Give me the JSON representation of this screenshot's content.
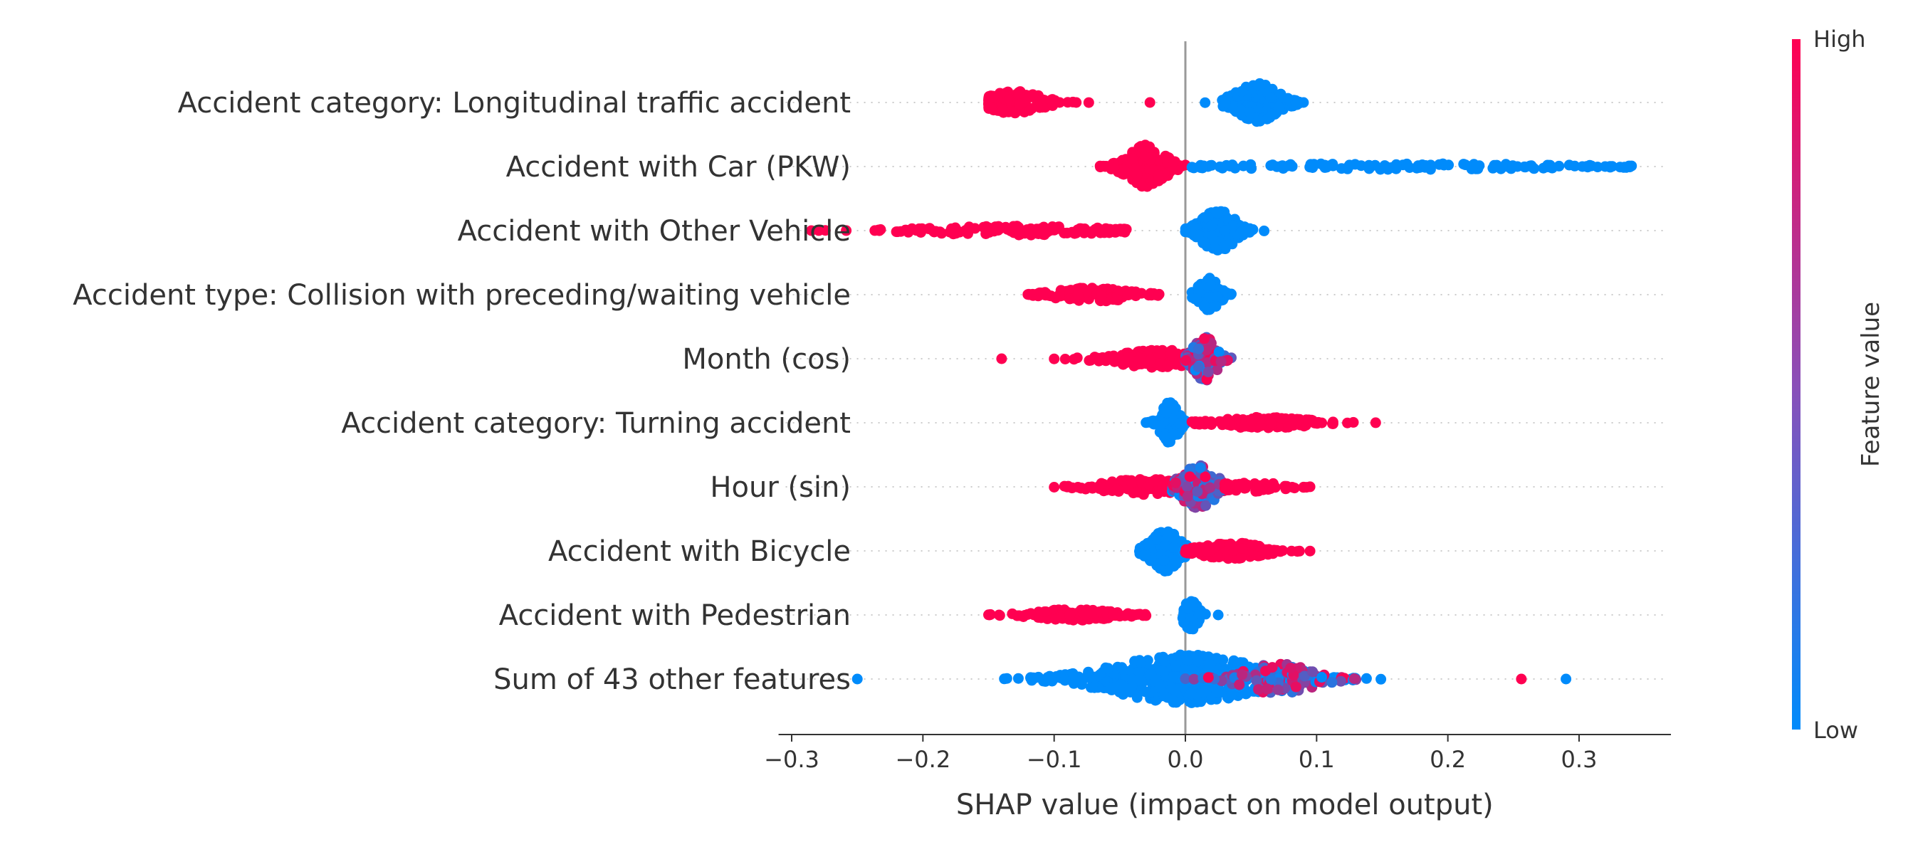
{
  "chart_data": {
    "type": "scatter",
    "subtype": "shap-beeswarm",
    "xlabel": "SHAP value (impact on model output)",
    "xlim": [
      -0.31,
      0.37
    ],
    "xticks": [
      -0.3,
      -0.2,
      -0.1,
      0.0,
      0.1,
      0.2,
      0.3
    ],
    "xtick_labels": [
      "−0.3",
      "−0.2",
      "−0.1",
      "0.0",
      "0.1",
      "0.2",
      "0.3"
    ],
    "zero_line": 0.0,
    "colors": {
      "high": "#ff0051",
      "low": "#008bfb",
      "zero_line": "#999999",
      "grid_dots": "#cccccc",
      "axis": "#333333"
    },
    "colorbar": {
      "title": "Feature value",
      "high_label": "High",
      "low_label": "Low"
    },
    "features": [
      {
        "name": "Accident category: Longitudinal traffic accident",
        "clusters": [
          {
            "lo": -0.15,
            "hi": -0.027,
            "center": -0.13,
            "spread": 0.018,
            "n": 160,
            "color": "high",
            "amp": 0.45
          },
          {
            "lo": 0.015,
            "hi": 0.09,
            "center": 0.055,
            "spread": 0.015,
            "n": 150,
            "color": "low",
            "amp": 0.75
          }
        ]
      },
      {
        "name": "Accident with Car (PKW)",
        "clusters": [
          {
            "lo": -0.065,
            "hi": 0.0,
            "center": -0.03,
            "spread": 0.013,
            "n": 220,
            "color": "high",
            "amp": 0.85
          },
          {
            "lo": 0.005,
            "hi": 0.34,
            "center": 0.16,
            "spread": 0.12,
            "n": 130,
            "color": "low",
            "amp": 0.12
          }
        ]
      },
      {
        "name": "Accident with Other Vehicle",
        "clusters": [
          {
            "lo": -0.285,
            "hi": -0.045,
            "center": -0.13,
            "spread": 0.06,
            "n": 150,
            "color": "high",
            "amp": 0.18
          },
          {
            "lo": 0.0,
            "hi": 0.06,
            "center": 0.025,
            "spread": 0.012,
            "n": 170,
            "color": "low",
            "amp": 0.8
          }
        ]
      },
      {
        "name": "Accident type: Collision with preceding/waiting vehicle",
        "clusters": [
          {
            "lo": -0.12,
            "hi": -0.02,
            "center": -0.07,
            "spread": 0.025,
            "n": 140,
            "color": "high",
            "amp": 0.28
          },
          {
            "lo": 0.005,
            "hi": 0.035,
            "center": 0.018,
            "spread": 0.007,
            "n": 110,
            "color": "low",
            "amp": 0.65
          }
        ]
      },
      {
        "name": "Month (cos)",
        "clusters": [
          {
            "lo": -0.14,
            "hi": -0.14,
            "center": -0.14,
            "spread": 0.0,
            "n": 1,
            "color": "high",
            "amp": 0.0
          },
          {
            "lo": -0.1,
            "hi": 0.01,
            "center": -0.02,
            "spread": 0.03,
            "n": 160,
            "color": "high",
            "amp": 0.35
          },
          {
            "lo": 0.0,
            "hi": 0.035,
            "center": 0.015,
            "spread": 0.008,
            "n": 130,
            "color": "mixed",
            "amp": 0.85
          }
        ]
      },
      {
        "name": "Accident category: Turning accident",
        "clusters": [
          {
            "lo": -0.03,
            "hi": 0.0,
            "center": -0.012,
            "spread": 0.006,
            "n": 120,
            "color": "low",
            "amp": 0.8
          },
          {
            "lo": 0.005,
            "hi": 0.145,
            "center": 0.06,
            "spread": 0.03,
            "n": 140,
            "color": "high",
            "amp": 0.22
          }
        ]
      },
      {
        "name": "Hour (sin)",
        "clusters": [
          {
            "lo": -0.1,
            "hi": 0.0,
            "center": -0.03,
            "spread": 0.03,
            "n": 140,
            "color": "high",
            "amp": 0.3
          },
          {
            "lo": -0.01,
            "hi": 0.04,
            "center": 0.01,
            "spread": 0.012,
            "n": 150,
            "color": "mixed",
            "amp": 0.85
          },
          {
            "lo": 0.03,
            "hi": 0.095,
            "center": 0.05,
            "spread": 0.02,
            "n": 50,
            "color": "high",
            "amp": 0.2
          }
        ]
      },
      {
        "name": "Accident with Bicycle",
        "clusters": [
          {
            "lo": -0.035,
            "hi": 0.005,
            "center": -0.015,
            "spread": 0.01,
            "n": 150,
            "color": "low",
            "amp": 0.8
          },
          {
            "lo": 0.0,
            "hi": 0.095,
            "center": 0.035,
            "spread": 0.022,
            "n": 150,
            "color": "high",
            "amp": 0.32
          }
        ]
      },
      {
        "name": "Accident with Pedestrian",
        "clusters": [
          {
            "lo": -0.15,
            "hi": -0.03,
            "center": -0.085,
            "spread": 0.028,
            "n": 140,
            "color": "high",
            "amp": 0.22
          },
          {
            "lo": -0.002,
            "hi": 0.025,
            "center": 0.004,
            "spread": 0.005,
            "n": 70,
            "color": "low",
            "amp": 0.6
          }
        ]
      },
      {
        "name": "Sum of 43 other features",
        "clusters": [
          {
            "lo": -0.25,
            "hi": 0.29,
            "center": 0.0,
            "spread": 0.05,
            "n": 520,
            "color": "low",
            "amp": 0.95
          },
          {
            "lo": 0.0,
            "hi": 0.13,
            "center": 0.07,
            "spread": 0.025,
            "n": 120,
            "color": "mixed",
            "amp": 0.6
          },
          {
            "lo": 0.255,
            "hi": 0.258,
            "center": 0.256,
            "spread": 0.0,
            "n": 1,
            "color": "high",
            "amp": 0.0
          }
        ]
      }
    ]
  }
}
